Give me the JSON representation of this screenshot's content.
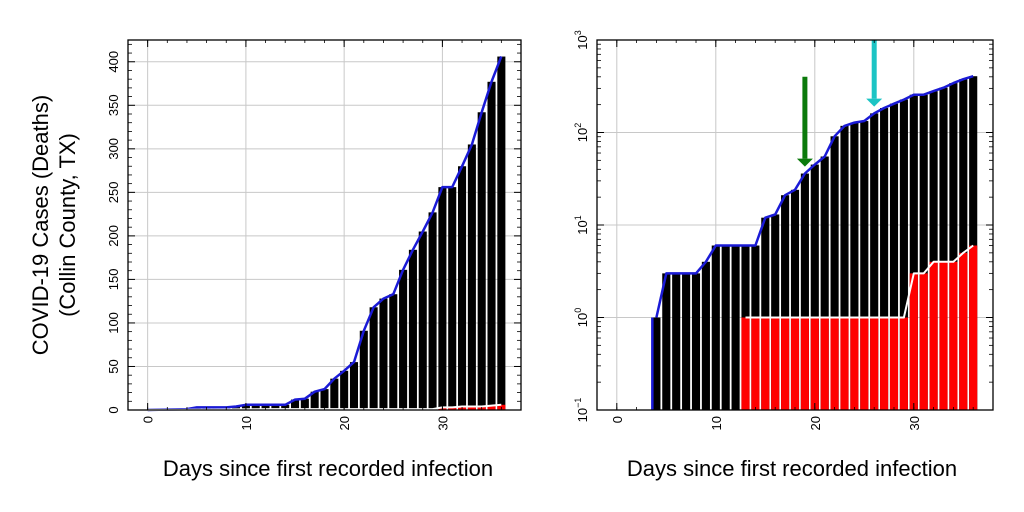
{
  "ylabel_line1": "COVID-19 Cases (Deaths)",
  "ylabel_line2": "(Collin County, TX)",
  "chart_data": [
    {
      "type": "bar",
      "xlabel": "Days since first recorded infection",
      "ylabel": "COVID-19 Cases (Deaths) (Collin County, TX)",
      "yscale": "linear",
      "xlim": [
        -2,
        38
      ],
      "ylim": [
        0,
        425
      ],
      "xticks": [
        0,
        10,
        20,
        30
      ],
      "yticks": [
        0,
        50,
        100,
        150,
        200,
        250,
        300,
        350,
        400
      ],
      "grid": true,
      "series": [
        {
          "role": "cases",
          "color": "#000000",
          "line_color": "#1a1ad6",
          "x": [
            4,
            5,
            6,
            7,
            8,
            9,
            10,
            11,
            12,
            13,
            14,
            15,
            16,
            17,
            18,
            19,
            20,
            21,
            22,
            23,
            24,
            25,
            26,
            27,
            28,
            29,
            30,
            31,
            32,
            33,
            34,
            35,
            36
          ],
          "values": [
            1,
            3,
            3,
            3,
            3,
            4,
            6,
            6,
            6,
            6,
            6,
            12,
            13,
            21,
            24,
            36,
            45,
            55,
            91,
            118,
            128,
            133,
            161,
            184,
            205,
            227,
            256,
            256,
            280,
            305,
            342,
            377,
            406
          ]
        },
        {
          "role": "deaths",
          "color": "#ff0000",
          "line_color": "#ffffff",
          "x": [
            13,
            14,
            15,
            16,
            17,
            18,
            19,
            20,
            21,
            22,
            23,
            24,
            25,
            26,
            27,
            28,
            29,
            30,
            31,
            32,
            33,
            34,
            35,
            36
          ],
          "values": [
            1,
            1,
            1,
            1,
            1,
            1,
            1,
            1,
            1,
            1,
            1,
            1,
            1,
            1,
            1,
            1,
            1,
            3,
            3,
            4,
            4,
            4,
            5,
            6
          ]
        }
      ]
    },
    {
      "type": "bar",
      "xlabel": "Days since first recorded infection",
      "ylabel": "COVID-19 Cases (Deaths) (Collin County, TX)",
      "yscale": "log",
      "xlim": [
        -2,
        38
      ],
      "ylim": [
        0.1,
        1000
      ],
      "xticks": [
        0,
        10,
        20,
        30
      ],
      "yticks": [
        {
          "value": 0.1,
          "base": "10",
          "exp": "−1"
        },
        {
          "value": 1,
          "base": "10",
          "exp": "0"
        },
        {
          "value": 10,
          "base": "10",
          "exp": "1"
        },
        {
          "value": 100,
          "base": "10",
          "exp": "2"
        },
        {
          "value": 1000,
          "base": "10",
          "exp": "3"
        }
      ],
      "grid": true,
      "annotations": [
        {
          "type": "arrow",
          "x": 19,
          "y_from": 400,
          "y_to": 45,
          "color": "#0b7a0b"
        },
        {
          "type": "arrow",
          "x": 26,
          "y_from": 1000,
          "y_to": 200,
          "color": "#1cc4c4"
        }
      ],
      "series": [
        {
          "role": "cases",
          "color": "#000000",
          "line_color": "#1a1ad6",
          "x": [
            4,
            5,
            6,
            7,
            8,
            9,
            10,
            11,
            12,
            13,
            14,
            15,
            16,
            17,
            18,
            19,
            20,
            21,
            22,
            23,
            24,
            25,
            26,
            27,
            28,
            29,
            30,
            31,
            32,
            33,
            34,
            35,
            36
          ],
          "values": [
            1,
            3,
            3,
            3,
            3,
            4,
            6,
            6,
            6,
            6,
            6,
            12,
            13,
            21,
            24,
            36,
            45,
            55,
            91,
            118,
            128,
            133,
            161,
            184,
            205,
            227,
            256,
            256,
            280,
            305,
            342,
            377,
            406
          ]
        },
        {
          "role": "deaths",
          "color": "#ff0000",
          "line_color": "#ffffff",
          "x": [
            13,
            14,
            15,
            16,
            17,
            18,
            19,
            20,
            21,
            22,
            23,
            24,
            25,
            26,
            27,
            28,
            29,
            30,
            31,
            32,
            33,
            34,
            35,
            36
          ],
          "values": [
            1,
            1,
            1,
            1,
            1,
            1,
            1,
            1,
            1,
            1,
            1,
            1,
            1,
            1,
            1,
            1,
            1,
            3,
            3,
            4,
            4,
            4,
            5,
            6
          ]
        }
      ]
    }
  ]
}
